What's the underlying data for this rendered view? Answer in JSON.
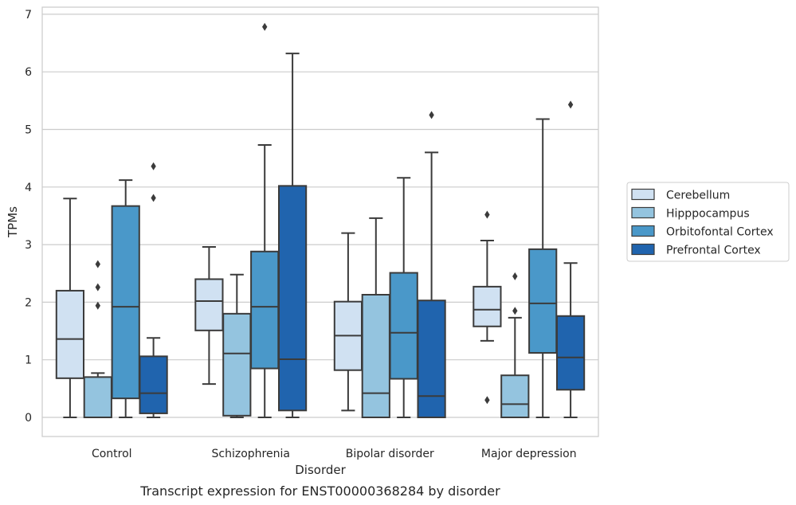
{
  "chart_data": {
    "type": "box",
    "caption": "Transcript expression for ENST00000368284 by disorder",
    "xlabel": "Disorder",
    "ylabel": "TPMs",
    "ylim": [
      -0.33,
      7.12
    ],
    "yticks": [
      0,
      1,
      2,
      3,
      4,
      5,
      6,
      7
    ],
    "grid": "horizontal",
    "legend_position": "right",
    "categories": [
      "Control",
      "Schizophrenia",
      "Bipolar disorder",
      "Major depression"
    ],
    "series": [
      {
        "name": "Cerebellum",
        "color": "#d0e1f2",
        "boxes": [
          {
            "whisker_low": 0.0,
            "q1": 0.68,
            "median": 1.36,
            "q3": 2.2,
            "whisker_high": 3.8,
            "outliers": []
          },
          {
            "whisker_low": 0.58,
            "q1": 1.51,
            "median": 2.02,
            "q3": 2.4,
            "whisker_high": 2.96,
            "outliers": []
          },
          {
            "whisker_low": 0.12,
            "q1": 0.82,
            "median": 1.42,
            "q3": 2.01,
            "whisker_high": 3.2,
            "outliers": []
          },
          {
            "whisker_low": 1.33,
            "q1": 1.58,
            "median": 1.87,
            "q3": 2.27,
            "whisker_high": 3.07,
            "outliers": [
              3.52,
              0.3
            ]
          }
        ]
      },
      {
        "name": "Hipppocampus",
        "color": "#94c4df",
        "boxes": [
          {
            "whisker_low": 0.0,
            "q1": 0.0,
            "median": 0.0,
            "q3": 0.7,
            "whisker_high": 0.77,
            "outliers": [
              2.66,
              2.26,
              1.94
            ]
          },
          {
            "whisker_low": 0.0,
            "q1": 0.03,
            "median": 1.11,
            "q3": 1.8,
            "whisker_high": 2.48,
            "outliers": []
          },
          {
            "whisker_low": 0.0,
            "q1": 0.0,
            "median": 0.42,
            "q3": 2.13,
            "whisker_high": 3.46,
            "outliers": []
          },
          {
            "whisker_low": 0.0,
            "q1": 0.0,
            "median": 0.23,
            "q3": 0.73,
            "whisker_high": 1.73,
            "outliers": [
              2.45,
              1.85
            ]
          }
        ]
      },
      {
        "name": "Orbitofontal Cortex",
        "color": "#4a98c9",
        "boxes": [
          {
            "whisker_low": 0.0,
            "q1": 0.33,
            "median": 1.92,
            "q3": 3.67,
            "whisker_high": 4.12,
            "outliers": []
          },
          {
            "whisker_low": 0.0,
            "q1": 0.85,
            "median": 1.92,
            "q3": 2.88,
            "whisker_high": 4.73,
            "outliers": [
              6.78
            ]
          },
          {
            "whisker_low": 0.0,
            "q1": 0.67,
            "median": 1.47,
            "q3": 2.51,
            "whisker_high": 4.16,
            "outliers": []
          },
          {
            "whisker_low": 0.0,
            "q1": 1.12,
            "median": 1.98,
            "q3": 2.92,
            "whisker_high": 5.18,
            "outliers": []
          }
        ]
      },
      {
        "name": "Prefrontal Cortex",
        "color": "#2064ae",
        "boxes": [
          {
            "whisker_low": 0.0,
            "q1": 0.07,
            "median": 0.42,
            "q3": 1.06,
            "whisker_high": 1.38,
            "outliers": [
              4.36,
              3.81
            ]
          },
          {
            "whisker_low": 0.0,
            "q1": 0.12,
            "median": 1.01,
            "q3": 4.02,
            "whisker_high": 6.32,
            "outliers": []
          },
          {
            "whisker_low": 0.0,
            "q1": 0.0,
            "median": 0.37,
            "q3": 2.03,
            "whisker_high": 4.6,
            "outliers": [
              5.25
            ]
          },
          {
            "whisker_low": 0.0,
            "q1": 0.48,
            "median": 1.04,
            "q3": 1.76,
            "whisker_high": 2.68,
            "outliers": [
              5.43
            ]
          }
        ]
      }
    ]
  }
}
